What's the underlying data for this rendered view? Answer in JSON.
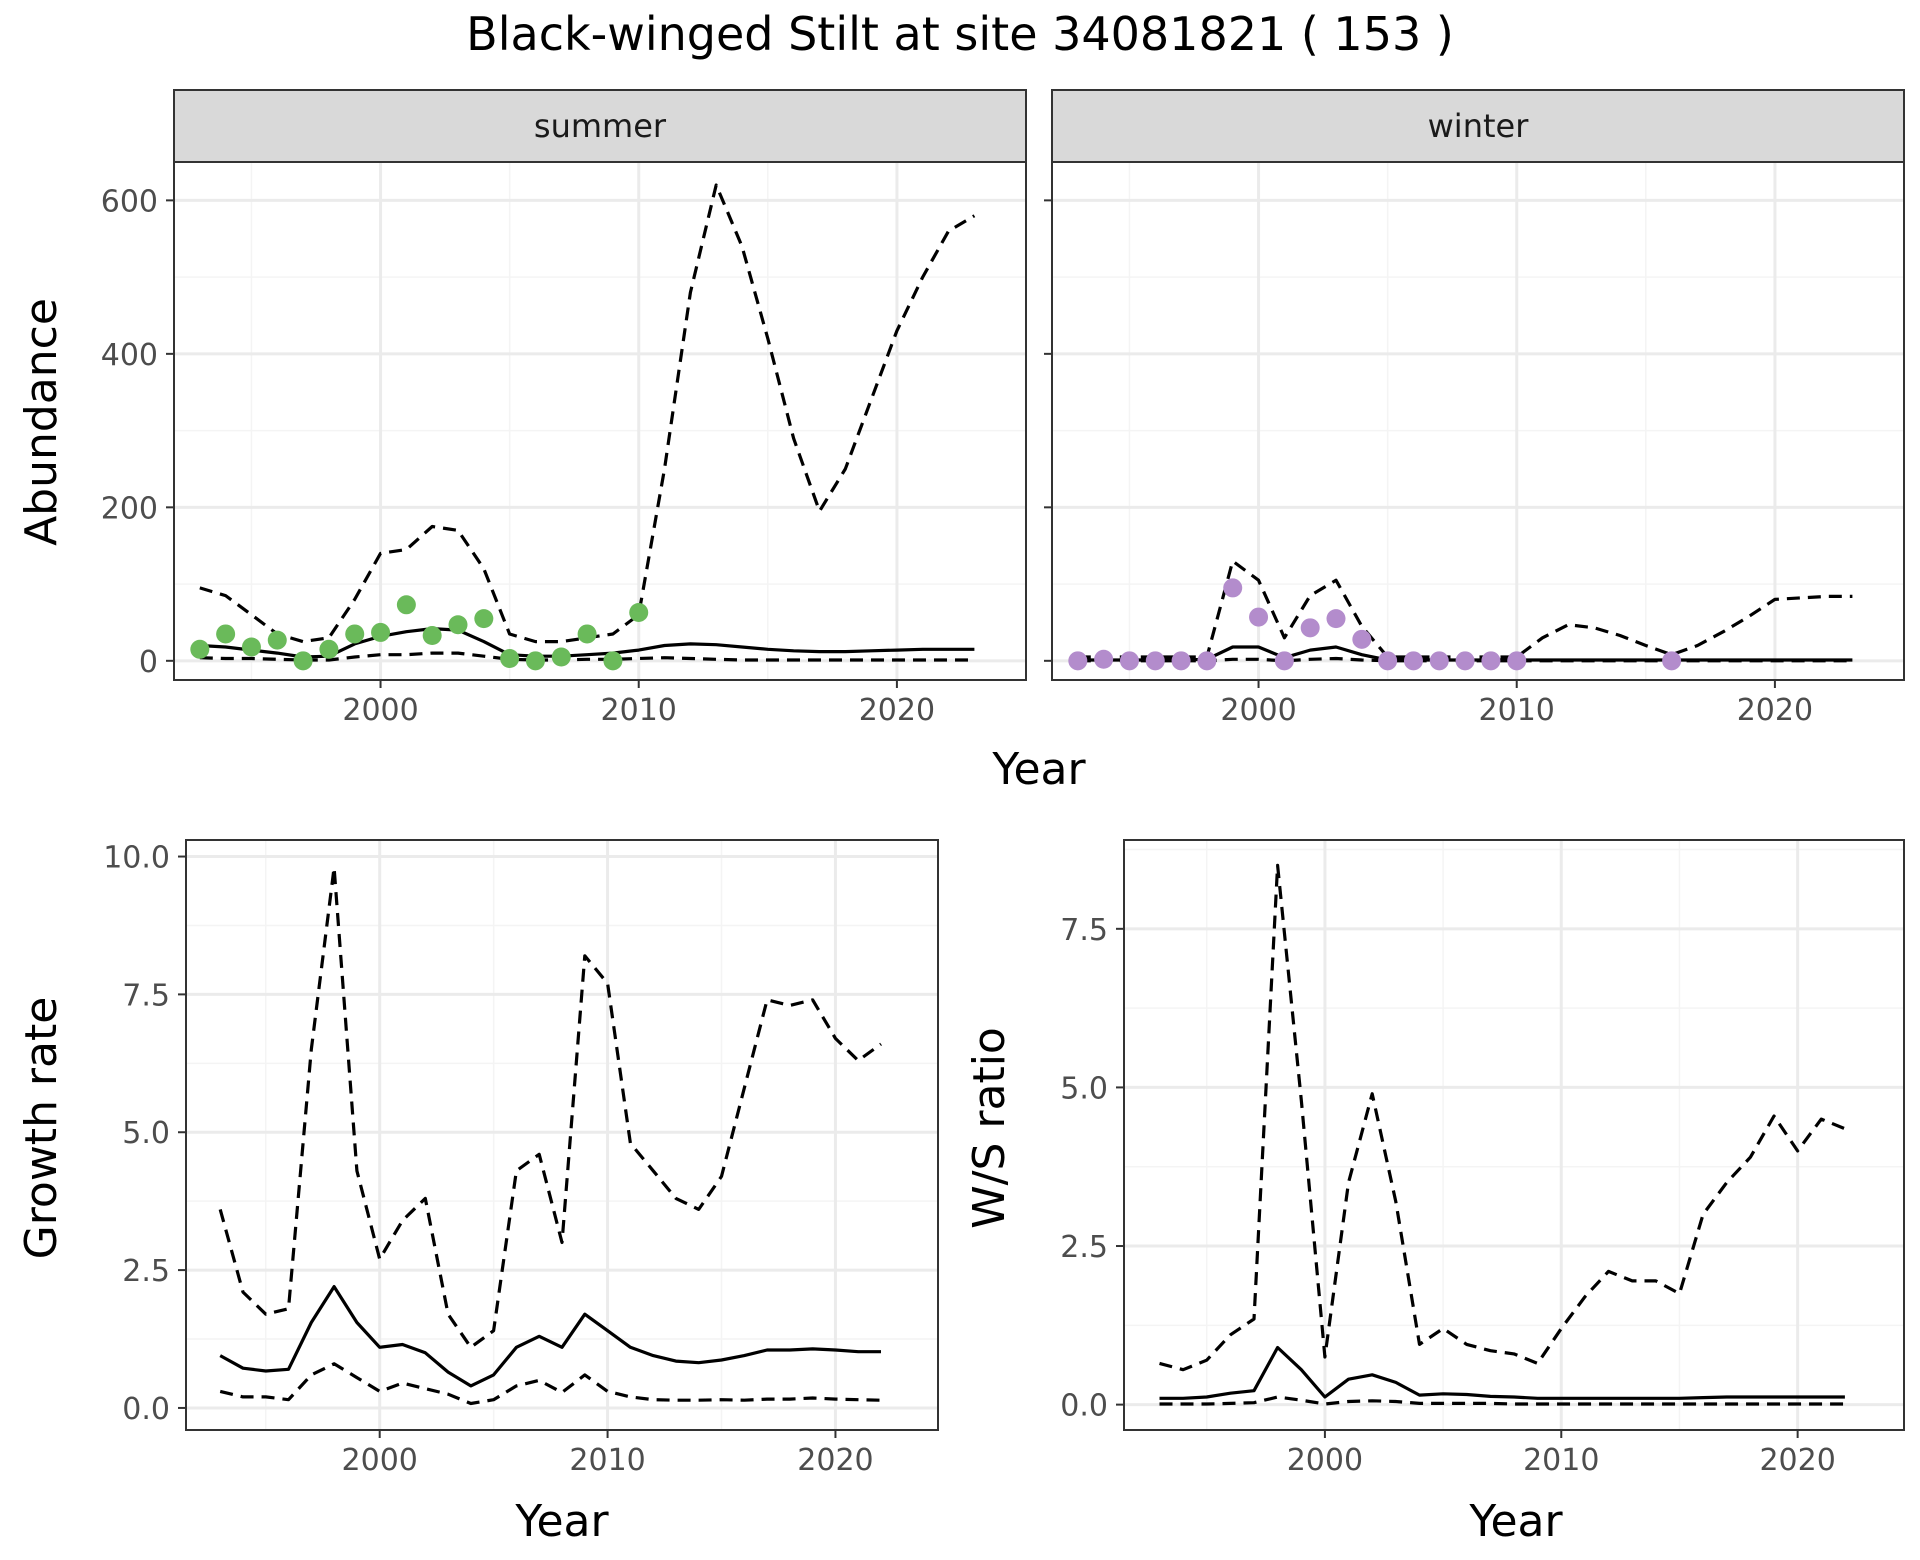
{
  "colors": {
    "summer_points": "#6aba5a",
    "winter_points": "#b38ccc",
    "line": "#000000",
    "strip_fill": "#d9d9d9",
    "grid_major": "#ebebeb",
    "grid_minor": "#f4f4f4",
    "panel_border": "#333333"
  },
  "chart_data": [
    {
      "id": "abundance-summer",
      "type": "line",
      "title": "Black-winged Stilt at site 34081821 ( 153 )",
      "strip": "summer",
      "ylabel": "Abundance",
      "xlabel": "Year",
      "xlim": [
        1992,
        2025
      ],
      "ylim": [
        -25,
        650
      ],
      "xticks": [
        2000,
        2010,
        2020
      ],
      "xtick_labels": [
        "2000",
        "2010",
        "2020"
      ],
      "yticks": [
        0,
        200,
        400,
        600
      ],
      "ytick_labels": [
        "0",
        "200",
        "400",
        "600"
      ],
      "x": [
        1993,
        1994,
        1995,
        1996,
        1997,
        1998,
        1999,
        2000,
        2001,
        2002,
        2003,
        2004,
        2005,
        2006,
        2007,
        2008,
        2009,
        2010,
        2011,
        2012,
        2013,
        2014,
        2015,
        2016,
        2017,
        2018,
        2019,
        2020,
        2021,
        2022,
        2023
      ],
      "series": [
        {
          "name": "upper",
          "style": "dashed",
          "values": [
            95,
            85,
            60,
            35,
            25,
            30,
            80,
            140,
            145,
            175,
            170,
            120,
            35,
            25,
            25,
            30,
            35,
            60,
            250,
            480,
            620,
            540,
            420,
            290,
            195,
            250,
            340,
            430,
            500,
            560,
            580
          ]
        },
        {
          "name": "median",
          "style": "solid",
          "values": [
            20,
            18,
            14,
            10,
            5,
            6,
            22,
            32,
            38,
            42,
            40,
            25,
            8,
            6,
            6,
            8,
            10,
            14,
            20,
            22,
            21,
            18,
            15,
            13,
            12,
            12,
            13,
            14,
            15,
            15,
            15
          ]
        },
        {
          "name": "lower",
          "style": "dashed",
          "values": [
            4,
            3,
            3,
            2,
            1,
            1,
            5,
            8,
            8,
            10,
            10,
            6,
            2,
            1,
            1,
            2,
            2,
            3,
            4,
            3,
            2,
            1,
            1,
            1,
            1,
            1,
            1,
            1,
            1,
            1,
            1
          ]
        }
      ],
      "points": {
        "name": "observed",
        "x": [
          1993,
          1994,
          1995,
          1996,
          1997,
          1998,
          1999,
          2000,
          2001,
          2002,
          2003,
          2004,
          2005,
          2006,
          2007,
          2008,
          2009,
          2010
        ],
        "values": [
          15,
          35,
          18,
          27,
          0,
          15,
          35,
          37,
          73,
          33,
          47,
          55,
          3,
          0,
          5,
          35,
          0,
          63
        ]
      }
    },
    {
      "id": "abundance-winter",
      "type": "line",
      "strip": "winter",
      "xlabel": "Year",
      "xlim": [
        1992,
        2025
      ],
      "ylim": [
        -25,
        650
      ],
      "xticks": [
        2000,
        2010,
        2020
      ],
      "xtick_labels": [
        "2000",
        "2010",
        "2020"
      ],
      "yticks": [
        0,
        200,
        400,
        600
      ],
      "ytick_labels": [],
      "x": [
        1993,
        1994,
        1995,
        1996,
        1997,
        1998,
        1999,
        2000,
        2001,
        2002,
        2003,
        2004,
        2005,
        2006,
        2007,
        2008,
        2009,
        2010,
        2011,
        2012,
        2013,
        2014,
        2015,
        2016,
        2017,
        2018,
        2019,
        2020,
        2021,
        2022,
        2023
      ],
      "series": [
        {
          "name": "upper",
          "style": "dashed",
          "values": [
            5,
            5,
            5,
            5,
            5,
            5,
            130,
            105,
            30,
            85,
            105,
            45,
            5,
            5,
            5,
            5,
            5,
            5,
            30,
            47,
            43,
            33,
            20,
            8,
            20,
            38,
            58,
            80,
            82,
            84,
            84
          ]
        },
        {
          "name": "median",
          "style": "solid",
          "values": [
            1,
            1,
            1,
            1,
            1,
            2,
            18,
            18,
            4,
            14,
            18,
            8,
            1,
            1,
            1,
            1,
            1,
            1,
            1,
            1,
            1,
            1,
            1,
            1,
            1,
            1,
            1,
            1,
            1,
            1,
            1
          ]
        },
        {
          "name": "lower",
          "style": "dashed",
          "values": [
            0,
            0,
            0,
            0,
            0,
            0,
            2,
            2,
            0,
            2,
            3,
            1,
            0,
            0,
            0,
            0,
            0,
            0,
            0,
            0,
            0,
            0,
            0,
            0,
            0,
            0,
            0,
            0,
            0,
            0,
            0
          ]
        }
      ],
      "points": {
        "name": "observed",
        "x": [
          1993,
          1994,
          1995,
          1996,
          1997,
          1998,
          1999,
          2000,
          2001,
          2002,
          2003,
          2004,
          2005,
          2006,
          2007,
          2008,
          2009,
          2010,
          2016
        ],
        "values": [
          0,
          2,
          0,
          0,
          0,
          0,
          95,
          57,
          0,
          43,
          55,
          28,
          0,
          0,
          0,
          0,
          0,
          0,
          0
        ]
      }
    },
    {
      "id": "growth-rate",
      "type": "line",
      "ylabel": "Growth rate",
      "xlabel": "Year",
      "xlim": [
        1991.5,
        2024.5
      ],
      "ylim": [
        -0.4,
        10.3
      ],
      "xticks": [
        2000,
        2010,
        2020
      ],
      "xtick_labels": [
        "2000",
        "2010",
        "2020"
      ],
      "yticks": [
        0,
        2.5,
        5,
        7.5,
        10
      ],
      "ytick_labels": [
        "0.0",
        "2.5",
        "5.0",
        "7.5",
        "10.0"
      ],
      "x": [
        1993,
        1994,
        1995,
        1996,
        1997,
        1998,
        1999,
        2000,
        2001,
        2002,
        2003,
        2004,
        2005,
        2006,
        2007,
        2008,
        2009,
        2010,
        2011,
        2012,
        2013,
        2014,
        2015,
        2016,
        2017,
        2018,
        2019,
        2020,
        2021,
        2022
      ],
      "series": [
        {
          "name": "upper",
          "style": "dashed",
          "values": [
            3.6,
            2.1,
            1.7,
            1.8,
            6.5,
            9.8,
            4.3,
            2.7,
            3.4,
            3.8,
            1.7,
            1.1,
            1.4,
            4.3,
            4.6,
            3.0,
            8.2,
            7.7,
            4.8,
            4.3,
            3.8,
            3.6,
            4.2,
            5.8,
            7.4,
            7.3,
            7.4,
            6.7,
            6.3,
            6.6
          ]
        },
        {
          "name": "median",
          "style": "solid",
          "values": [
            0.95,
            0.72,
            0.67,
            0.7,
            1.55,
            2.2,
            1.55,
            1.1,
            1.15,
            1.0,
            0.65,
            0.4,
            0.6,
            1.1,
            1.3,
            1.1,
            1.7,
            1.4,
            1.1,
            0.95,
            0.85,
            0.82,
            0.87,
            0.95,
            1.05,
            1.05,
            1.07,
            1.05,
            1.02,
            1.02
          ]
        },
        {
          "name": "lower",
          "style": "dashed",
          "values": [
            0.3,
            0.2,
            0.2,
            0.15,
            0.6,
            0.8,
            0.55,
            0.3,
            0.45,
            0.35,
            0.25,
            0.08,
            0.15,
            0.4,
            0.5,
            0.28,
            0.6,
            0.3,
            0.2,
            0.15,
            0.14,
            0.14,
            0.15,
            0.14,
            0.16,
            0.16,
            0.18,
            0.16,
            0.15,
            0.14
          ]
        }
      ]
    },
    {
      "id": "ws-ratio",
      "type": "line",
      "ylabel": "W/S ratio",
      "xlabel": "Year",
      "xlim": [
        1991.5,
        2024.5
      ],
      "ylim": [
        -0.4,
        8.9
      ],
      "xticks": [
        2000,
        2010,
        2020
      ],
      "xtick_labels": [
        "2000",
        "2010",
        "2020"
      ],
      "yticks": [
        0,
        2.5,
        5,
        7.5
      ],
      "ytick_labels": [
        "0.0",
        "2.5",
        "5.0",
        "7.5"
      ],
      "x": [
        1993,
        1994,
        1995,
        1996,
        1997,
        1998,
        1999,
        2000,
        2001,
        2002,
        2003,
        2004,
        2005,
        2006,
        2007,
        2008,
        2009,
        2010,
        2011,
        2012,
        2013,
        2014,
        2015,
        2016,
        2017,
        2018,
        2019,
        2020,
        2021,
        2022
      ],
      "series": [
        {
          "name": "upper",
          "style": "dashed",
          "values": [
            0.65,
            0.55,
            0.7,
            1.1,
            1.35,
            8.5,
            4.8,
            0.75,
            3.5,
            4.9,
            3.2,
            0.95,
            1.2,
            0.95,
            0.85,
            0.8,
            0.65,
            1.2,
            1.7,
            2.1,
            1.95,
            1.95,
            1.75,
            3.0,
            3.5,
            3.9,
            4.55,
            4.0,
            4.5,
            4.35
          ]
        },
        {
          "name": "median",
          "style": "solid",
          "values": [
            0.1,
            0.1,
            0.12,
            0.18,
            0.22,
            0.9,
            0.55,
            0.12,
            0.4,
            0.47,
            0.35,
            0.15,
            0.17,
            0.16,
            0.13,
            0.12,
            0.1,
            0.1,
            0.1,
            0.1,
            0.1,
            0.1,
            0.1,
            0.11,
            0.12,
            0.12,
            0.12,
            0.12,
            0.12,
            0.12
          ]
        },
        {
          "name": "lower",
          "style": "dashed",
          "values": [
            0.01,
            0.01,
            0.01,
            0.02,
            0.03,
            0.12,
            0.07,
            0.01,
            0.05,
            0.06,
            0.05,
            0.02,
            0.02,
            0.02,
            0.02,
            0.01,
            0.01,
            0.01,
            0.01,
            0.01,
            0.01,
            0.01,
            0.01,
            0.01,
            0.01,
            0.01,
            0.01,
            0.01,
            0.01,
            0.01
          ]
        }
      ]
    }
  ]
}
